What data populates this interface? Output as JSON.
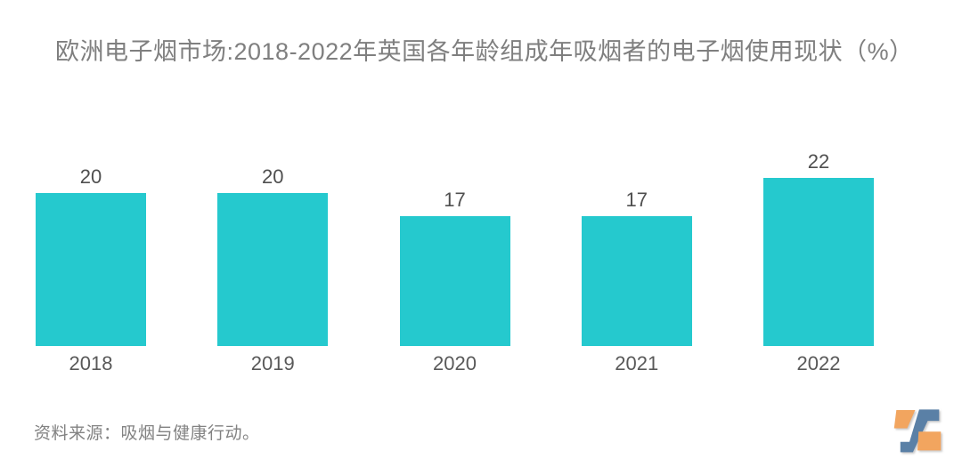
{
  "header": {
    "title": "欧洲电子烟市场:2018-2022年英国各年龄组成年吸烟者的电子烟使用现状（%）"
  },
  "footer": {
    "source": "资料来源：吸烟与健康行动。"
  },
  "logo": {
    "name": "z-watermark-logo",
    "blue": "#5a80a6",
    "orange": "#f2a55e"
  },
  "colors": {
    "background": "#ffffff",
    "bar": "#25c9ce",
    "title_text": "#7f7f7f",
    "value_text": "#4f4f4f",
    "axis_text": "#595959",
    "source_text": "#828282"
  },
  "chart_data": {
    "type": "bar",
    "title": "欧洲电子烟市场:2018-2022年英国各年龄组成年吸烟者的电子烟使用现状（%）",
    "categories": [
      "2018",
      "2019",
      "2020",
      "2021",
      "2022"
    ],
    "values": [
      20,
      20,
      17,
      17,
      22
    ],
    "xlabel": "",
    "ylabel": "",
    "ylim": [
      0,
      25
    ],
    "grid": false,
    "legend": false,
    "data_labels": true,
    "bar_color": "#25c9ce"
  }
}
